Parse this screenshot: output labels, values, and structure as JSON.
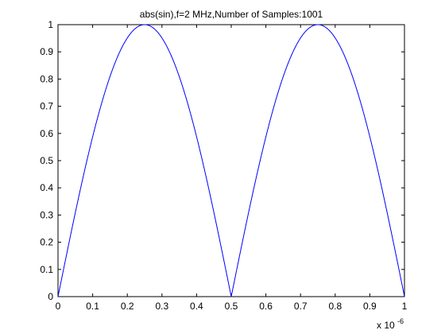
{
  "chart_data": {
    "type": "line",
    "title": "abs(sin),f=2 MHz,Number of Samples:1001",
    "xlabel": "",
    "ylabel": "",
    "x_exponent_label": {
      "base": "x 10",
      "exponent": "-6"
    },
    "xlim": [
      0,
      1
    ],
    "ylim": [
      0,
      1
    ],
    "x_ticks": [
      0,
      0.1,
      0.2,
      0.3,
      0.4,
      0.5,
      0.6,
      0.7,
      0.8,
      0.9,
      1
    ],
    "x_tick_labels": [
      "0",
      "0.1",
      "0.2",
      "0.3",
      "0.4",
      "0.5",
      "0.6",
      "0.7",
      "0.8",
      "0.9",
      "1"
    ],
    "y_ticks": [
      0,
      0.1,
      0.2,
      0.3,
      0.4,
      0.5,
      0.6,
      0.7,
      0.8,
      0.9,
      1
    ],
    "y_tick_labels": [
      "0",
      "0.1",
      "0.2",
      "0.3",
      "0.4",
      "0.5",
      "0.6",
      "0.7",
      "0.8",
      "0.9",
      "1"
    ],
    "grid": false,
    "legend": "none",
    "series": [
      {
        "function": "abs(sin)",
        "color": "#0000ff",
        "x": [
          0,
          0.05,
          0.1,
          0.15,
          0.2,
          0.25,
          0.3,
          0.35,
          0.4,
          0.45,
          0.5,
          0.55,
          0.6,
          0.65,
          0.7,
          0.75,
          0.8,
          0.85,
          0.9,
          0.95,
          1
        ],
        "y": [
          0,
          0.309,
          0.588,
          0.809,
          0.951,
          1,
          0.951,
          0.809,
          0.588,
          0.309,
          0,
          0.309,
          0.588,
          0.809,
          0.951,
          1,
          0.951,
          0.809,
          0.588,
          0.309,
          0
        ]
      }
    ]
  }
}
